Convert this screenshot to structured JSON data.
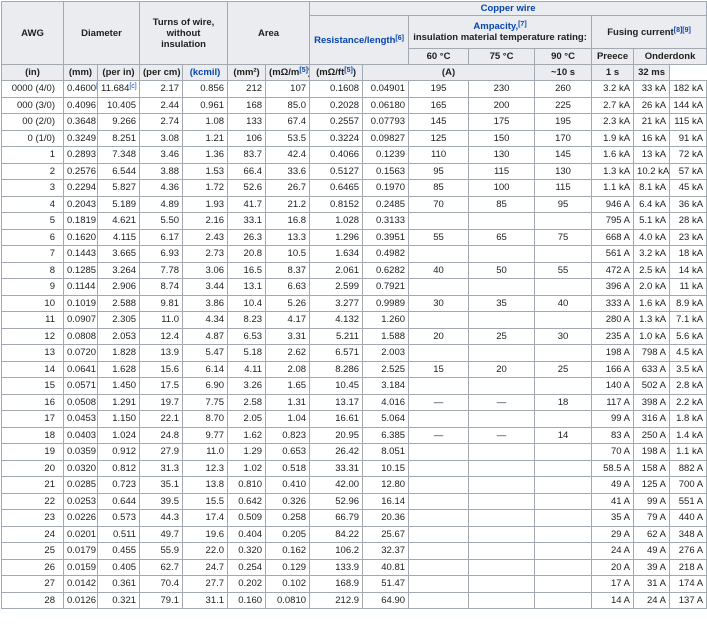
{
  "header": {
    "awg": "AWG",
    "diameter": "Diameter",
    "turns": "Turns of wire, without insulation",
    "area": "Area",
    "copper": "Copper wire",
    "resistance": {
      "text": "Resistance/length",
      "sup": "[6]"
    },
    "ampacity": {
      "text": "Ampacity,",
      "sup": "[7]",
      "sub": "insulation material temperature rating:"
    },
    "fusing": {
      "text": "Fusing current",
      "sup": "[8][9]"
    },
    "temps": [
      "60 °C",
      "75 °C",
      "90 °C"
    ],
    "preece": "Preece",
    "onderdonk": "Onderdonk",
    "units": [
      "(in)",
      "(mm)",
      "(per in)",
      "(per cm)",
      "(kcmil)",
      "(mm²)",
      {
        "text": "(mΩ/m",
        "sup": "[5]",
        "end": ")"
      },
      {
        "text": "(mΩ/ft",
        "sup": "[5]",
        "end": ")"
      },
      "(A)",
      "~10 s",
      "1 s",
      "32 ms"
    ]
  },
  "rows": [
    {
      "cells": [
        "0000 (4/0)",
        "0.4600",
        "11.684",
        "2.17",
        "0.856",
        "212",
        "107",
        "0.1608",
        "0.04901"
      ],
      "sup": {
        "1": "[c]",
        "2": "[c]"
      },
      "ampacity": [
        "195",
        "230",
        "260"
      ],
      "fusing": [
        "3.2 kA",
        "33 kA",
        "182 kA"
      ]
    },
    {
      "cells": [
        "000 (3/0)",
        "0.4096",
        "10.405",
        "2.44",
        "0.961",
        "168",
        "85.0",
        "0.2028",
        "0.06180"
      ],
      "ampacity": [
        "165",
        "200",
        "225"
      ],
      "fusing": [
        "2.7 kA",
        "26 kA",
        "144 kA"
      ]
    },
    {
      "cells": [
        "00 (2/0)",
        "0.3648",
        "9.266",
        "2.74",
        "1.08",
        "133",
        "67.4",
        "0.2557",
        "0.07793"
      ],
      "ampacity": [
        "145",
        "175",
        "195"
      ],
      "fusing": [
        "2.3 kA",
        "21 kA",
        "115 kA"
      ]
    },
    {
      "cells": [
        "0 (1/0)",
        "0.3249",
        "8.251",
        "3.08",
        "1.21",
        "106",
        "53.5",
        "0.3224",
        "0.09827"
      ],
      "ampacity": [
        "125",
        "150",
        "170"
      ],
      "fusing": [
        "1.9 kA",
        "16 kA",
        "91 kA"
      ]
    },
    {
      "cells": [
        "1",
        "0.2893",
        "7.348",
        "3.46",
        "1.36",
        "83.7",
        "42.4",
        "0.4066",
        "0.1239"
      ],
      "ampacity": [
        "110",
        "130",
        "145"
      ],
      "fusing": [
        "1.6 kA",
        "13 kA",
        "72 kA"
      ]
    },
    {
      "cells": [
        "2",
        "0.2576",
        "6.544",
        "3.88",
        "1.53",
        "66.4",
        "33.6",
        "0.5127",
        "0.1563"
      ],
      "ampacity": [
        "95",
        "115",
        "130"
      ],
      "fusing": [
        "1.3 kA",
        "10.2 kA",
        "57 kA"
      ]
    },
    {
      "cells": [
        "3",
        "0.2294",
        "5.827",
        "4.36",
        "1.72",
        "52.6",
        "26.7",
        "0.6465",
        "0.1970"
      ],
      "ampacity": [
        "85",
        "100",
        "115"
      ],
      "fusing": [
        "1.1 kA",
        "8.1 kA",
        "45 kA"
      ]
    },
    {
      "cells": [
        "4",
        "0.2043",
        "5.189",
        "4.89",
        "1.93",
        "41.7",
        "21.2",
        "0.8152",
        "0.2485"
      ],
      "ampacity": [
        "70",
        "85",
        "95"
      ],
      "fusing": [
        "946 A",
        "6.4 kA",
        "36 kA"
      ]
    },
    {
      "cells": [
        "5",
        "0.1819",
        "4.621",
        "5.50",
        "2.16",
        "33.1",
        "16.8",
        "1.028",
        "0.3133"
      ],
      "fusing": [
        "795 A",
        "5.1 kA",
        "28 kA"
      ]
    },
    {
      "cells": [
        "6",
        "0.1620",
        "4.115",
        "6.17",
        "2.43",
        "26.3",
        "13.3",
        "1.296",
        "0.3951"
      ],
      "ampacity": [
        "55",
        "65",
        "75"
      ],
      "fusing": [
        "668 A",
        "4.0 kA",
        "23 kA"
      ]
    },
    {
      "cells": [
        "7",
        "0.1443",
        "3.665",
        "6.93",
        "2.73",
        "20.8",
        "10.5",
        "1.634",
        "0.4982"
      ],
      "fusing": [
        "561 A",
        "3.2 kA",
        "18 kA"
      ]
    },
    {
      "cells": [
        "8",
        "0.1285",
        "3.264",
        "7.78",
        "3.06",
        "16.5",
        "8.37",
        "2.061",
        "0.6282"
      ],
      "ampacity": [
        "40",
        "50",
        "55"
      ],
      "fusing": [
        "472 A",
        "2.5 kA",
        "14 kA"
      ]
    },
    {
      "cells": [
        "9",
        "0.1144",
        "2.906",
        "8.74",
        "3.44",
        "13.1",
        "6.63",
        "2.599",
        "0.7921"
      ],
      "fusing": [
        "396 A",
        "2.0 kA",
        "11 kA"
      ]
    },
    {
      "cells": [
        "10",
        "0.1019",
        "2.588",
        "9.81",
        "3.86",
        "10.4",
        "5.26",
        "3.277",
        "0.9989"
      ],
      "ampacity": [
        "30",
        "35",
        "40"
      ],
      "fusing": [
        "333 A",
        "1.6 kA",
        "8.9 kA"
      ]
    },
    {
      "cells": [
        "11",
        "0.0907",
        "2.305",
        "11.0",
        "4.34",
        "8.23",
        "4.17",
        "4.132",
        "1.260"
      ],
      "fusing": [
        "280 A",
        "1.3 kA",
        "7.1 kA"
      ]
    },
    {
      "cells": [
        "12",
        "0.0808",
        "2.053",
        "12.4",
        "4.87",
        "6.53",
        "3.31",
        "5.211",
        "1.588"
      ],
      "ampacity": [
        "20",
        "25",
        "30"
      ],
      "fusing": [
        "235 A",
        "1.0 kA",
        "5.6 kA"
      ]
    },
    {
      "cells": [
        "13",
        "0.0720",
        "1.828",
        "13.9",
        "5.47",
        "5.18",
        "2.62",
        "6.571",
        "2.003"
      ],
      "fusing": [
        "198 A",
        "798 A",
        "4.5 kA"
      ]
    },
    {
      "cells": [
        "14",
        "0.0641",
        "1.628",
        "15.6",
        "6.14",
        "4.11",
        "2.08",
        "8.286",
        "2.525"
      ],
      "ampacity": [
        "15",
        "20",
        "25"
      ],
      "fusing": [
        "166 A",
        "633 A",
        "3.5 kA"
      ]
    },
    {
      "cells": [
        "15",
        "0.0571",
        "1.450",
        "17.5",
        "6.90",
        "3.26",
        "1.65",
        "10.45",
        "3.184"
      ],
      "fusing": [
        "140 A",
        "502 A",
        "2.8 kA"
      ]
    },
    {
      "cells": [
        "16",
        "0.0508",
        "1.291",
        "19.7",
        "7.75",
        "2.58",
        "1.31",
        "13.17",
        "4.016"
      ],
      "ampacity": [
        "—",
        "—",
        "18"
      ],
      "fusing": [
        "117 A",
        "398 A",
        "2.2 kA"
      ]
    },
    {
      "cells": [
        "17",
        "0.0453",
        "1.150",
        "22.1",
        "8.70",
        "2.05",
        "1.04",
        "16.61",
        "5.064"
      ],
      "fusing": [
        "99 A",
        "316 A",
        "1.8 kA"
      ]
    },
    {
      "cells": [
        "18",
        "0.0403",
        "1.024",
        "24.8",
        "9.77",
        "1.62",
        "0.823",
        "20.95",
        "6.385"
      ],
      "ampacity": [
        "—",
        "—",
        "14"
      ],
      "fusing": [
        "83 A",
        "250 A",
        "1.4 kA"
      ]
    },
    {
      "cells": [
        "19",
        "0.0359",
        "0.912",
        "27.9",
        "11.0",
        "1.29",
        "0.653",
        "26.42",
        "8.051"
      ],
      "fusing": [
        "70 A",
        "198 A",
        "1.1 kA"
      ]
    },
    {
      "cells": [
        "20",
        "0.0320",
        "0.812",
        "31.3",
        "12.3",
        "1.02",
        "0.518",
        "33.31",
        "10.15"
      ],
      "fusing": [
        "58.5 A",
        "158 A",
        "882 A"
      ]
    },
    {
      "cells": [
        "21",
        "0.0285",
        "0.723",
        "35.1",
        "13.8",
        "0.810",
        "0.410",
        "42.00",
        "12.80"
      ],
      "fusing": [
        "49 A",
        "125 A",
        "700 A"
      ]
    },
    {
      "cells": [
        "22",
        "0.0253",
        "0.644",
        "39.5",
        "15.5",
        "0.642",
        "0.326",
        "52.96",
        "16.14"
      ],
      "fusing": [
        "41 A",
        "99 A",
        "551 A"
      ]
    },
    {
      "cells": [
        "23",
        "0.0226",
        "0.573",
        "44.3",
        "17.4",
        "0.509",
        "0.258",
        "66.79",
        "20.36"
      ],
      "fusing": [
        "35 A",
        "79 A",
        "440 A"
      ]
    },
    {
      "cells": [
        "24",
        "0.0201",
        "0.511",
        "49.7",
        "19.6",
        "0.404",
        "0.205",
        "84.22",
        "25.67"
      ],
      "fusing": [
        "29 A",
        "62 A",
        "348 A"
      ]
    },
    {
      "cells": [
        "25",
        "0.0179",
        "0.455",
        "55.9",
        "22.0",
        "0.320",
        "0.162",
        "106.2",
        "32.37"
      ],
      "fusing": [
        "24 A",
        "49 A",
        "276 A"
      ]
    },
    {
      "cells": [
        "26",
        "0.0159",
        "0.405",
        "62.7",
        "24.7",
        "0.254",
        "0.129",
        "133.9",
        "40.81"
      ],
      "fusing": [
        "20 A",
        "39 A",
        "218 A"
      ]
    },
    {
      "cells": [
        "27",
        "0.0142",
        "0.361",
        "70.4",
        "27.7",
        "0.202",
        "0.102",
        "168.9",
        "51.47"
      ],
      "fusing": [
        "17 A",
        "31 A",
        "174 A"
      ]
    },
    {
      "cells": [
        "28",
        "0.0126",
        "0.321",
        "79.1",
        "31.1",
        "0.160",
        "0.0810",
        "212.9",
        "64.90"
      ],
      "fusing": [
        "14 A",
        "24 A",
        "137 A"
      ]
    }
  ]
}
